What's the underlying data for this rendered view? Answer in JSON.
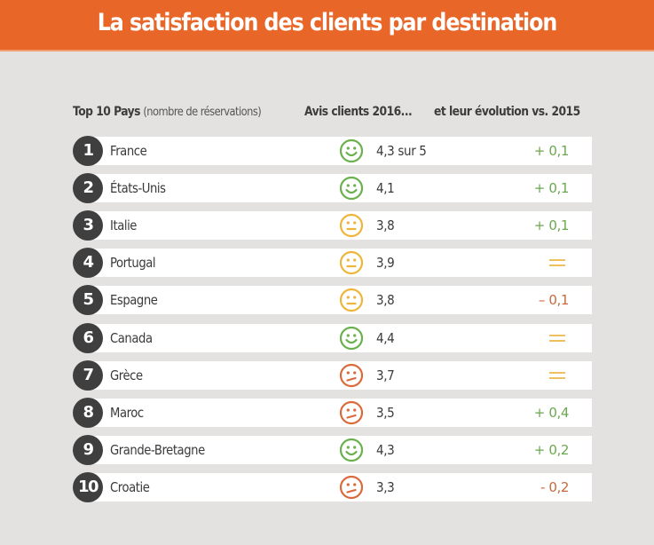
{
  "title": "La satisfaction des clients par destination",
  "headers": {
    "rank_label": "Top 10 Pays",
    "rank_sub": "(nombre de réservations)",
    "avis": "Avis clients 2016...",
    "evolution": "et leur évolution vs. 2015"
  },
  "colors": {
    "banner": "#e96629",
    "positive": "#6aa84f",
    "neutral": "#f0c060",
    "negative": "#c8693c",
    "smiley_happy": "#6ab04c",
    "smiley_neutral": "#eeb53a",
    "smiley_unhappy": "#db6a3a"
  },
  "rows": [
    {
      "rank": "1",
      "country": "France",
      "mood": "happy",
      "score": "4,3 sur 5",
      "evolution": "+ 0,1",
      "trend": "up"
    },
    {
      "rank": "2",
      "country": "États-Unis",
      "mood": "happy",
      "score": "4,1",
      "evolution": "+ 0,1",
      "trend": "up"
    },
    {
      "rank": "3",
      "country": "Italie",
      "mood": "neutral",
      "score": "3,8",
      "evolution": "+ 0,1",
      "trend": "up"
    },
    {
      "rank": "4",
      "country": "Portugal",
      "mood": "neutral",
      "score": "3,9",
      "evolution": "=",
      "trend": "equal"
    },
    {
      "rank": "5",
      "country": "Espagne",
      "mood": "neutral",
      "score": "3,8",
      "evolution": "– 0,1",
      "trend": "down"
    },
    {
      "rank": "6",
      "country": "Canada",
      "mood": "happy",
      "score": "4,4",
      "evolution": "=",
      "trend": "equal"
    },
    {
      "rank": "7",
      "country": "Grèce",
      "mood": "unhappy",
      "score": "3,7",
      "evolution": "=",
      "trend": "equal"
    },
    {
      "rank": "8",
      "country": "Maroc",
      "mood": "unhappy",
      "score": "3,5",
      "evolution": "+ 0,4",
      "trend": "up"
    },
    {
      "rank": "9",
      "country": "Grande-Bretagne",
      "mood": "happy",
      "score": "4,3",
      "evolution": "+ 0,2",
      "trend": "up"
    },
    {
      "rank": "10",
      "country": "Croatie",
      "mood": "unhappy",
      "score": "3,3",
      "evolution": "- 0,2",
      "trend": "down"
    }
  ]
}
